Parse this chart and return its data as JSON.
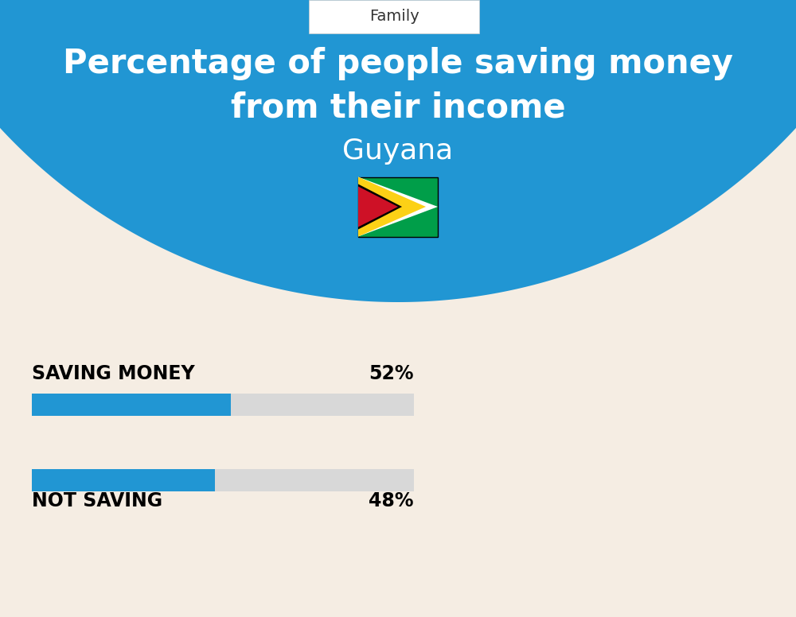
{
  "title_line1": "Percentage of people saving money",
  "title_line2": "from their income",
  "country": "Guyana",
  "category_label": "Family",
  "saving_label": "SAVING MONEY",
  "saving_value": 52,
  "saving_pct_text": "52%",
  "not_saving_label": "NOT SAVING",
  "not_saving_value": 48,
  "not_saving_pct_text": "48%",
  "blue_bg_color": "#2196d3",
  "cream_bg_color": "#f5ede3",
  "bar_blue_color": "#2196d3",
  "bar_gray_color": "#d8d8d8",
  "title_color": "#ffffff",
  "country_color": "#ffffff",
  "bar_label_color": "#000000",
  "family_box_color": "#ffffff",
  "family_text_color": "#333333"
}
